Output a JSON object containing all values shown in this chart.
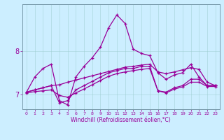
{
  "xlabel": "Windchill (Refroidissement éolien,°C)",
  "background_color": "#cceeff",
  "line_color": "#990099",
  "x_labels": [
    "0",
    "1",
    "2",
    "3",
    "4",
    "5",
    "6",
    "7",
    "8",
    "9",
    "10",
    "11",
    "12",
    "13",
    "14",
    "15",
    "16",
    "17",
    "18",
    "19",
    "20",
    "21",
    "22",
    "23"
  ],
  "ylim": [
    6.65,
    9.1
  ],
  "yticks": [
    7,
    8
  ],
  "series1": [
    7.05,
    7.4,
    7.6,
    7.7,
    6.85,
    6.75,
    7.4,
    7.65,
    7.85,
    8.1,
    8.55,
    8.85,
    8.65,
    8.05,
    7.95,
    7.9,
    7.5,
    7.35,
    7.45,
    7.5,
    7.7,
    7.4,
    7.2,
    7.2
  ],
  "series2": [
    7.05,
    7.1,
    7.15,
    7.2,
    6.8,
    6.85,
    7.1,
    7.2,
    7.3,
    7.4,
    7.5,
    7.55,
    7.6,
    7.6,
    7.65,
    7.65,
    7.08,
    7.05,
    7.15,
    7.2,
    7.35,
    7.35,
    7.2,
    7.2
  ],
  "series3": [
    7.05,
    7.1,
    7.15,
    7.2,
    7.22,
    7.28,
    7.33,
    7.38,
    7.43,
    7.48,
    7.53,
    7.58,
    7.63,
    7.65,
    7.68,
    7.7,
    7.52,
    7.48,
    7.52,
    7.57,
    7.62,
    7.58,
    7.28,
    7.2
  ],
  "series4": [
    7.03,
    7.06,
    7.08,
    7.1,
    6.97,
    6.93,
    7.03,
    7.12,
    7.22,
    7.32,
    7.42,
    7.48,
    7.52,
    7.55,
    7.58,
    7.6,
    7.08,
    7.03,
    7.12,
    7.17,
    7.28,
    7.28,
    7.18,
    7.18
  ]
}
